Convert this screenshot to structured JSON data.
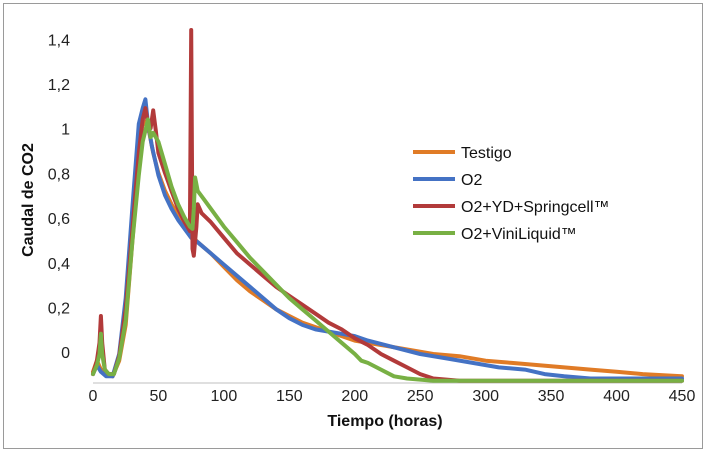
{
  "chart_data": {
    "type": "line",
    "xlabel": "Tiempo (horas)",
    "ylabel": "Caudal de CO2",
    "xlim": [
      0,
      450
    ],
    "ylim": [
      -0.08,
      1.5
    ],
    "x_ticks": [
      "0",
      "50",
      "100",
      "150",
      "200",
      "250",
      "300",
      "350",
      "400",
      "450"
    ],
    "y_ticks": [
      "0",
      "0,2",
      "0,4",
      "0,6",
      "0,8",
      "1",
      "1,2",
      "1,4"
    ],
    "grid": false,
    "legend_position": "right",
    "series": [
      {
        "name": "Testigo",
        "color": "#E07B26",
        "points": [
          [
            0,
            -0.03
          ],
          [
            3,
            0.02
          ],
          [
            6,
            -0.02
          ],
          [
            10,
            -0.04
          ],
          [
            15,
            -0.05
          ],
          [
            20,
            0.02
          ],
          [
            25,
            0.18
          ],
          [
            30,
            0.55
          ],
          [
            35,
            0.9
          ],
          [
            38,
            1.1
          ],
          [
            40,
            1.08
          ],
          [
            43,
            1.04
          ],
          [
            46,
            0.95
          ],
          [
            50,
            0.86
          ],
          [
            55,
            0.78
          ],
          [
            60,
            0.72
          ],
          [
            65,
            0.67
          ],
          [
            70,
            0.62
          ],
          [
            75,
            0.58
          ],
          [
            80,
            0.55
          ],
          [
            90,
            0.5
          ],
          [
            100,
            0.44
          ],
          [
            110,
            0.38
          ],
          [
            120,
            0.33
          ],
          [
            130,
            0.29
          ],
          [
            140,
            0.25
          ],
          [
            150,
            0.22
          ],
          [
            160,
            0.19
          ],
          [
            170,
            0.17
          ],
          [
            180,
            0.15
          ],
          [
            190,
            0.13
          ],
          [
            200,
            0.11
          ],
          [
            220,
            0.09
          ],
          [
            240,
            0.07
          ],
          [
            260,
            0.05
          ],
          [
            280,
            0.04
          ],
          [
            300,
            0.02
          ],
          [
            320,
            0.01
          ],
          [
            340,
            0
          ],
          [
            360,
            -0.01
          ],
          [
            380,
            -0.02
          ],
          [
            400,
            -0.03
          ],
          [
            420,
            -0.04
          ],
          [
            450,
            -0.05
          ]
        ]
      },
      {
        "name": "O2",
        "color": "#4472C4",
        "points": [
          [
            0,
            -0.04
          ],
          [
            3,
            0
          ],
          [
            6,
            -0.03
          ],
          [
            10,
            -0.05
          ],
          [
            15,
            -0.05
          ],
          [
            20,
            0.05
          ],
          [
            25,
            0.3
          ],
          [
            30,
            0.7
          ],
          [
            35,
            1.08
          ],
          [
            38,
            1.15
          ],
          [
            40,
            1.19
          ],
          [
            42,
            1.08
          ],
          [
            45,
            0.98
          ],
          [
            50,
            0.85
          ],
          [
            55,
            0.76
          ],
          [
            60,
            0.7
          ],
          [
            65,
            0.65
          ],
          [
            70,
            0.61
          ],
          [
            75,
            0.57
          ],
          [
            80,
            0.55
          ],
          [
            90,
            0.5
          ],
          [
            100,
            0.45
          ],
          [
            110,
            0.4
          ],
          [
            120,
            0.35
          ],
          [
            130,
            0.3
          ],
          [
            140,
            0.25
          ],
          [
            150,
            0.21
          ],
          [
            160,
            0.18
          ],
          [
            170,
            0.16
          ],
          [
            180,
            0.15
          ],
          [
            190,
            0.14
          ],
          [
            200,
            0.13
          ],
          [
            210,
            0.11
          ],
          [
            230,
            0.08
          ],
          [
            250,
            0.05
          ],
          [
            270,
            0.03
          ],
          [
            290,
            0.01
          ],
          [
            310,
            -0.01
          ],
          [
            330,
            -0.02
          ],
          [
            345,
            -0.04
          ],
          [
            360,
            -0.05
          ],
          [
            380,
            -0.06
          ],
          [
            400,
            -0.06
          ],
          [
            450,
            -0.06
          ]
        ]
      },
      {
        "name": "O2+YD+Springcell™",
        "color": "#B23A3A",
        "points": [
          [
            0,
            -0.04
          ],
          [
            3,
            0.02
          ],
          [
            5,
            0.1
          ],
          [
            6,
            0.22
          ],
          [
            7,
            0.1
          ],
          [
            9,
            -0.02
          ],
          [
            12,
            -0.04
          ],
          [
            16,
            -0.04
          ],
          [
            20,
            0.04
          ],
          [
            25,
            0.25
          ],
          [
            30,
            0.6
          ],
          [
            35,
            0.95
          ],
          [
            38,
            1.1
          ],
          [
            40,
            1.15
          ],
          [
            42,
            1.08
          ],
          [
            44,
            1.06
          ],
          [
            46,
            1.14
          ],
          [
            48,
            1.05
          ],
          [
            50,
            0.95
          ],
          [
            55,
            0.86
          ],
          [
            60,
            0.78
          ],
          [
            65,
            0.7
          ],
          [
            70,
            0.64
          ],
          [
            74,
            0.6
          ],
          [
            75,
            1.5
          ],
          [
            76,
            0.52
          ],
          [
            77,
            0.49
          ],
          [
            79,
            0.62
          ],
          [
            80,
            0.72
          ],
          [
            83,
            0.68
          ],
          [
            90,
            0.64
          ],
          [
            100,
            0.57
          ],
          [
            110,
            0.5
          ],
          [
            120,
            0.45
          ],
          [
            130,
            0.4
          ],
          [
            140,
            0.35
          ],
          [
            150,
            0.31
          ],
          [
            160,
            0.27
          ],
          [
            170,
            0.23
          ],
          [
            180,
            0.19
          ],
          [
            190,
            0.16
          ],
          [
            200,
            0.12
          ],
          [
            210,
            0.09
          ],
          [
            220,
            0.05
          ],
          [
            230,
            0.02
          ],
          [
            240,
            -0.01
          ],
          [
            250,
            -0.04
          ],
          [
            260,
            -0.06
          ],
          [
            280,
            -0.07
          ],
          [
            300,
            -0.07
          ],
          [
            350,
            -0.07
          ],
          [
            450,
            -0.07
          ]
        ]
      },
      {
        "name": "O2+ViniLiquid™",
        "color": "#78B044",
        "points": [
          [
            0,
            -0.04
          ],
          [
            3,
            0
          ],
          [
            5,
            0.05
          ],
          [
            6,
            0.14
          ],
          [
            7,
            0.05
          ],
          [
            9,
            -0.02
          ],
          [
            12,
            -0.04
          ],
          [
            16,
            -0.04
          ],
          [
            20,
            0.03
          ],
          [
            25,
            0.2
          ],
          [
            30,
            0.55
          ],
          [
            35,
            0.85
          ],
          [
            38,
            1
          ],
          [
            40,
            1.05
          ],
          [
            42,
            1.1
          ],
          [
            44,
            1.02
          ],
          [
            46,
            1.04
          ],
          [
            50,
            1
          ],
          [
            55,
            0.9
          ],
          [
            60,
            0.8
          ],
          [
            65,
            0.72
          ],
          [
            70,
            0.66
          ],
          [
            74,
            0.62
          ],
          [
            76,
            0.61
          ],
          [
            77,
            0.7
          ],
          [
            78,
            0.84
          ],
          [
            80,
            0.78
          ],
          [
            85,
            0.74
          ],
          [
            90,
            0.7
          ],
          [
            100,
            0.62
          ],
          [
            110,
            0.55
          ],
          [
            120,
            0.48
          ],
          [
            130,
            0.42
          ],
          [
            140,
            0.36
          ],
          [
            150,
            0.3
          ],
          [
            160,
            0.25
          ],
          [
            170,
            0.2
          ],
          [
            180,
            0.15
          ],
          [
            190,
            0.1
          ],
          [
            200,
            0.05
          ],
          [
            205,
            0.02
          ],
          [
            210,
            0.01
          ],
          [
            220,
            -0.02
          ],
          [
            230,
            -0.05
          ],
          [
            240,
            -0.06
          ],
          [
            260,
            -0.07
          ],
          [
            300,
            -0.07
          ],
          [
            450,
            -0.07
          ]
        ]
      }
    ]
  }
}
